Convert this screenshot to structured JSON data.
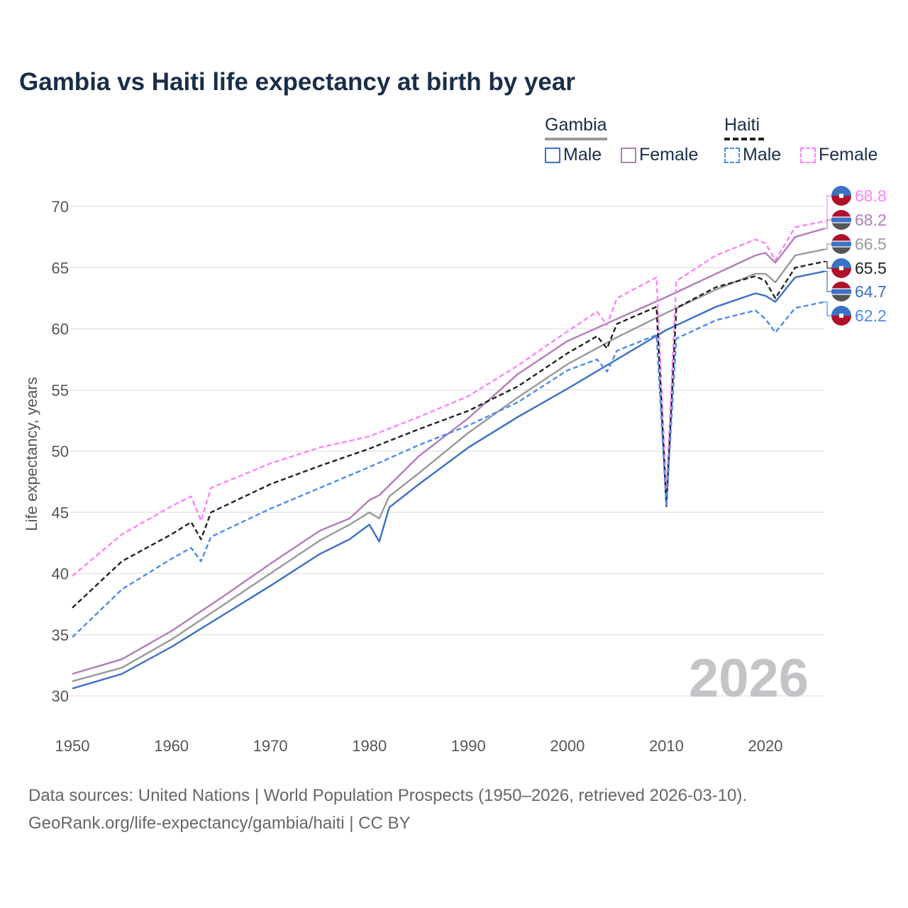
{
  "title": "Gambia vs Haiti life expectancy at birth by year",
  "legend": {
    "groups": [
      {
        "label": "Gambia",
        "items": [
          "Male",
          "Female"
        ]
      },
      {
        "label": "Haiti",
        "items": [
          "Male",
          "Female"
        ]
      }
    ]
  },
  "watermark": "2026",
  "footer": {
    "line1": "Data sources: United Nations | World Population Prospects (1950–2026, retrieved 2026-03-10).",
    "line2": "GeoRank.org/life-expectancy/gambia/haiti | CC BY"
  },
  "chart_data": {
    "type": "line",
    "title": "Gambia vs Haiti life expectancy at birth by year",
    "xlabel": "",
    "ylabel": "Life expectancy, years",
    "xlim": [
      1950,
      2026
    ],
    "ylim": [
      28,
      72
    ],
    "xticks": [
      1950,
      1960,
      1970,
      1980,
      1990,
      2000,
      2010,
      2020
    ],
    "yticks": [
      30,
      35,
      40,
      45,
      50,
      55,
      60,
      65,
      70
    ],
    "grid": true,
    "legend_position": "top-right",
    "series": [
      {
        "name": "Gambia Female",
        "color": "#b27cb8",
        "dash": false,
        "end_label": "68.2",
        "flag": "gambia",
        "x": [
          1950,
          1955,
          1960,
          1965,
          1970,
          1975,
          1978,
          1980,
          1981,
          1985,
          1990,
          1995,
          2000,
          2005,
          2010,
          2015,
          2019,
          2020,
          2021,
          2023,
          2026
        ],
        "y": [
          31.8,
          33.0,
          35.3,
          38.0,
          40.8,
          43.5,
          44.5,
          46.0,
          46.4,
          49.6,
          52.7,
          56.3,
          59.0,
          60.8,
          62.6,
          64.5,
          66.0,
          66.2,
          65.4,
          67.5,
          68.2
        ]
      },
      {
        "name": "Gambia",
        "color": "#999999",
        "dash": false,
        "end_label": "66.5",
        "flag": "gambia",
        "x": [
          1950,
          1955,
          1960,
          1965,
          1970,
          1975,
          1978,
          1980,
          1981,
          1982,
          1985,
          1990,
          1995,
          2000,
          2005,
          2010,
          2015,
          2019,
          2020,
          2021,
          2023,
          2026
        ],
        "y": [
          31.2,
          32.3,
          34.6,
          37.3,
          40.0,
          42.7,
          44.0,
          45.0,
          44.5,
          46.3,
          48.2,
          51.5,
          54.4,
          57.1,
          59.3,
          61.3,
          63.2,
          64.5,
          64.5,
          63.8,
          66.0,
          66.5
        ]
      },
      {
        "name": "Gambia Male",
        "color": "#3a6fc4",
        "dash": false,
        "end_label": "64.7",
        "flag": "gambia",
        "x": [
          1950,
          1955,
          1960,
          1965,
          1970,
          1975,
          1978,
          1980,
          1981,
          1982,
          1985,
          1990,
          1995,
          2000,
          2005,
          2010,
          2015,
          2019,
          2020,
          2021,
          2023,
          2026
        ],
        "y": [
          30.6,
          31.8,
          34.0,
          36.5,
          39.0,
          41.6,
          42.8,
          44.0,
          42.6,
          45.4,
          47.3,
          50.3,
          52.8,
          55.1,
          57.5,
          59.9,
          61.8,
          62.9,
          62.7,
          62.2,
          64.2,
          64.7
        ]
      },
      {
        "name": "Haiti Female",
        "color": "#ff80ff",
        "dash": true,
        "end_label": "68.8",
        "flag": "haiti",
        "x": [
          1950,
          1955,
          1960,
          1962,
          1963,
          1964,
          1970,
          1975,
          1980,
          1985,
          1990,
          1995,
          2000,
          2003,
          2004,
          2005,
          2009,
          2010,
          2011,
          2015,
          2019,
          2020,
          2021,
          2023,
          2026
        ],
        "y": [
          39.8,
          43.2,
          45.5,
          46.3,
          44.3,
          47.0,
          49.0,
          50.3,
          51.2,
          52.8,
          54.5,
          57.0,
          59.8,
          61.4,
          60.3,
          62.5,
          64.2,
          46.5,
          63.9,
          66.0,
          67.3,
          67.0,
          65.6,
          68.3,
          68.8
        ]
      },
      {
        "name": "Haiti",
        "color": "#222222",
        "dash": true,
        "end_label": "65.5",
        "flag": "haiti",
        "x": [
          1950,
          1955,
          1960,
          1962,
          1963,
          1964,
          1970,
          1975,
          1980,
          1985,
          1990,
          1995,
          2000,
          2003,
          2004,
          2005,
          2009,
          2010,
          2011,
          2015,
          2019,
          2020,
          2021,
          2023,
          2026
        ],
        "y": [
          37.2,
          41.0,
          43.2,
          44.2,
          42.8,
          45.0,
          47.3,
          48.8,
          50.2,
          51.8,
          53.3,
          55.3,
          58.0,
          59.4,
          58.4,
          60.4,
          61.8,
          45.5,
          61.7,
          63.4,
          64.3,
          63.9,
          62.5,
          65.0,
          65.5
        ]
      },
      {
        "name": "Haiti Male",
        "color": "#4a8cf0",
        "dash": true,
        "end_label": "62.2",
        "flag": "haiti",
        "x": [
          1950,
          1955,
          1960,
          1962,
          1963,
          1964,
          1970,
          1975,
          1980,
          1985,
          1990,
          1995,
          2000,
          2003,
          2004,
          2005,
          2009,
          2010,
          2011,
          2015,
          2019,
          2020,
          2021,
          2023,
          2026
        ],
        "y": [
          34.8,
          38.7,
          41.2,
          42.1,
          41.0,
          43.0,
          45.3,
          47.0,
          48.7,
          50.5,
          52.1,
          54.0,
          56.6,
          57.5,
          56.5,
          58.2,
          59.5,
          45.5,
          59.2,
          60.7,
          61.5,
          60.8,
          59.7,
          61.7,
          62.2
        ]
      }
    ]
  }
}
